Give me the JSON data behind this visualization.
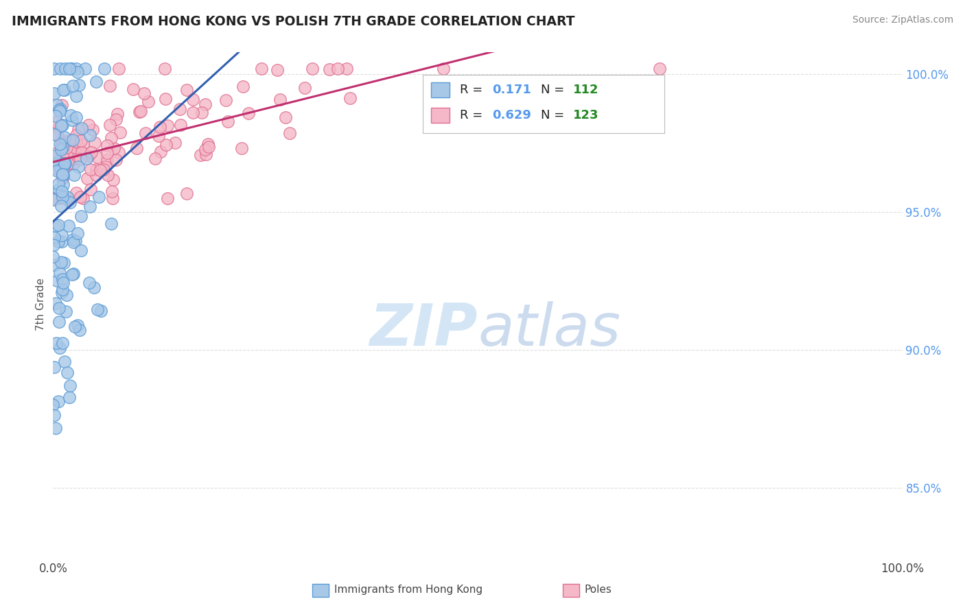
{
  "title": "IMMIGRANTS FROM HONG KONG VS POLISH 7TH GRADE CORRELATION CHART",
  "source": "Source: ZipAtlas.com",
  "ylabel": "7th Grade",
  "xlim": [
    0.0,
    1.0
  ],
  "ylim": [
    0.825,
    1.008
  ],
  "yticks": [
    0.85,
    0.9,
    0.95,
    1.0
  ],
  "ytick_labels": [
    "85.0%",
    "90.0%",
    "95.0%",
    "100.0%"
  ],
  "blue_R": 0.171,
  "blue_N": 112,
  "pink_R": 0.629,
  "pink_N": 123,
  "blue_color": "#a8c8e8",
  "blue_edge": "#5b9bd5",
  "pink_color": "#f4b8c8",
  "pink_edge": "#e07090",
  "blue_line_color": "#3060b0",
  "pink_line_color": "#c03070",
  "watermark_color": "#d0e4f4",
  "title_color": "#222222",
  "source_color": "#888888",
  "right_tick_color": "#5599ee",
  "legend_R_color": "#5599ee",
  "legend_N_color": "#228822",
  "background_color": "#ffffff",
  "grid_color": "#dddddd",
  "legend_label_blue": "Immigrants from Hong Kong",
  "legend_label_pink": "Poles"
}
